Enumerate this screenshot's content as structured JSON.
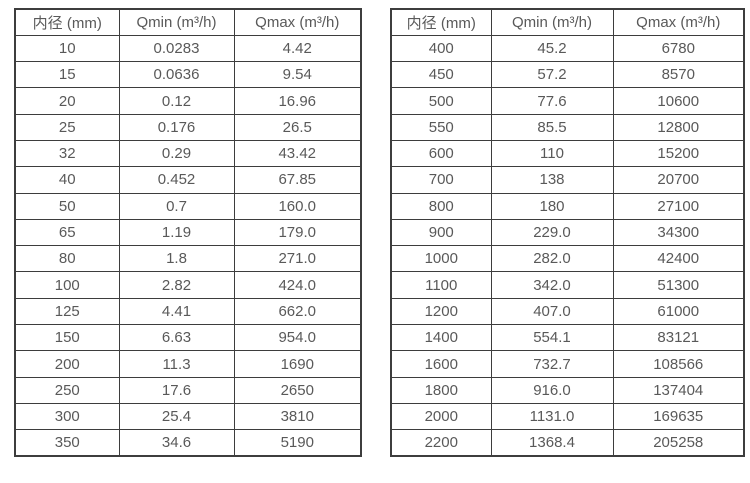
{
  "colors": {
    "border": "#3d3d3d",
    "text": "#595959",
    "background": "#ffffff"
  },
  "tables": {
    "left": {
      "headers": [
        "内径 (mm)",
        "Qmin (m³/h)",
        "Qmax (m³/h)"
      ],
      "rows": [
        [
          "10",
          "0.0283",
          "4.42"
        ],
        [
          "15",
          "0.0636",
          "9.54"
        ],
        [
          "20",
          "0.12",
          "16.96"
        ],
        [
          "25",
          "0.176",
          "26.5"
        ],
        [
          "32",
          "0.29",
          "43.42"
        ],
        [
          "40",
          "0.452",
          "67.85"
        ],
        [
          "50",
          "0.7",
          "160.0"
        ],
        [
          "65",
          "1.19",
          "179.0"
        ],
        [
          "80",
          "1.8",
          "271.0"
        ],
        [
          "100",
          "2.82",
          "424.0"
        ],
        [
          "125",
          "4.41",
          "662.0"
        ],
        [
          "150",
          "6.63",
          "954.0"
        ],
        [
          "200",
          "11.3",
          "1690"
        ],
        [
          "250",
          "17.6",
          "2650"
        ],
        [
          "300",
          "25.4",
          "3810"
        ],
        [
          "350",
          "34.6",
          "5190"
        ]
      ]
    },
    "right": {
      "headers": [
        "内径 (mm)",
        "Qmin (m³/h)",
        "Qmax (m³/h)"
      ],
      "rows": [
        [
          "400",
          "45.2",
          "6780"
        ],
        [
          "450",
          "57.2",
          "8570"
        ],
        [
          "500",
          "77.6",
          "10600"
        ],
        [
          "550",
          "85.5",
          "12800"
        ],
        [
          "600",
          "110",
          "15200"
        ],
        [
          "700",
          "138",
          "20700"
        ],
        [
          "800",
          "180",
          "27100"
        ],
        [
          "900",
          "229.0",
          "34300"
        ],
        [
          "1000",
          "282.0",
          "42400"
        ],
        [
          "1100",
          "342.0",
          "51300"
        ],
        [
          "1200",
          "407.0",
          "61000"
        ],
        [
          "1400",
          "554.1",
          "83121"
        ],
        [
          "1600",
          "732.7",
          "108566"
        ],
        [
          "1800",
          "916.0",
          "137404"
        ],
        [
          "2000",
          "1131.0",
          "169635"
        ],
        [
          "2200",
          "1368.4",
          "205258"
        ]
      ]
    }
  }
}
